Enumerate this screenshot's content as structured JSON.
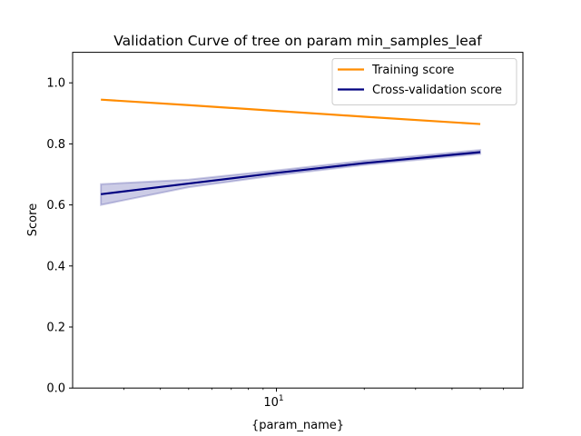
{
  "chart_data": {
    "type": "line",
    "title": "Validation Curve of tree on param min_samples_leaf",
    "xlabel": "{param_name}",
    "ylabel": "Score",
    "xscale": "log",
    "xlim": [
      2.0,
      70.0
    ],
    "ylim": [
      0.0,
      1.1
    ],
    "yticks": [
      0.0,
      0.2,
      0.4,
      0.6,
      0.8,
      1.0
    ],
    "ytick_labels": [
      "0.0",
      "0.2",
      "0.4",
      "0.6",
      "0.8",
      "1.0"
    ],
    "xtick_major": [
      10
    ],
    "xtick_major_label_base": "10",
    "xtick_major_label_exp": "1",
    "xtick_minor": [
      3,
      4,
      5,
      6,
      7,
      8,
      9,
      20,
      30,
      40,
      50,
      60
    ],
    "x": [
      2.5,
      5,
      10,
      20,
      50
    ],
    "series": [
      {
        "name": "Training score",
        "color": "#ff8c00",
        "values": [
          0.945,
          0.927,
          0.908,
          0.889,
          0.865
        ]
      },
      {
        "name": "Cross-validation score",
        "color": "#000080",
        "values": [
          0.635,
          0.67,
          0.705,
          0.737,
          0.773
        ],
        "band_lower": [
          0.6,
          0.658,
          0.697,
          0.731,
          0.767
        ],
        "band_upper": [
          0.668,
          0.683,
          0.713,
          0.745,
          0.78
        ],
        "band_color": "#000080"
      }
    ],
    "legend_position": "upper right",
    "grid": false
  }
}
